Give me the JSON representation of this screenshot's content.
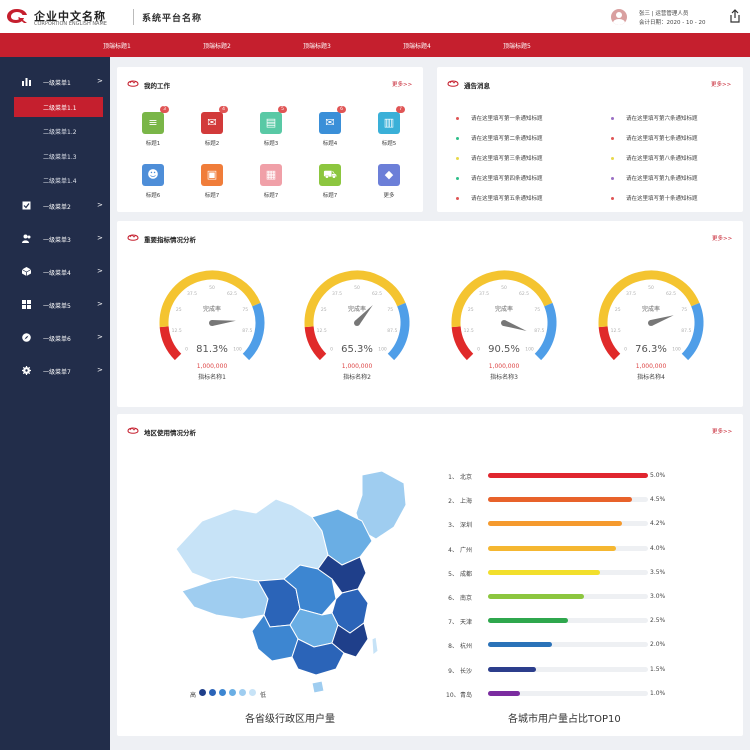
{
  "header": {
    "logo_cn": "企业中文名称",
    "logo_en": "CORPORTION ENGLISH NAME",
    "system_name": "系统平台名称",
    "user_line1": "张三 | 运营管理人员",
    "user_line2": "会计日期：2020 - 10 - 20",
    "logo_icon": "company-logo-icon",
    "export_icon": "export-icon"
  },
  "top_nav": [
    "顶端标题1",
    "顶端标题2",
    "顶端标题3",
    "顶端标题4",
    "顶端标题5"
  ],
  "sidebar": {
    "first_menu": {
      "label": "一级菜单1",
      "icon": "chart-bars-icon",
      "arrow": ">"
    },
    "sub_items": [
      "二级菜单1.1",
      "二级菜单1.2",
      "二级菜单1.3",
      "二级菜单1.4"
    ],
    "menus": [
      {
        "label": "一级菜单2",
        "icon": "checkbox-icon",
        "arrow": ">"
      },
      {
        "label": "一级菜单3",
        "icon": "users-icon",
        "arrow": ">"
      },
      {
        "label": "一级菜单4",
        "icon": "cube-icon",
        "arrow": ">"
      },
      {
        "label": "一级菜单5",
        "icon": "grid-icon",
        "arrow": ">"
      },
      {
        "label": "一级菜单6",
        "icon": "compass-icon",
        "arrow": ">"
      },
      {
        "label": "一级菜单7",
        "icon": "gear-icon",
        "arrow": ">"
      }
    ]
  },
  "my_work": {
    "title": "我的工作",
    "more": "更多>>",
    "items": [
      {
        "label": "标题1",
        "badge": "3",
        "color": "#7ab648",
        "glyph": "≡",
        "icon": "message-icon"
      },
      {
        "label": "标题2",
        "badge": "4",
        "color": "#d23a3a",
        "glyph": "✉",
        "icon": "mail-icon"
      },
      {
        "label": "标题3",
        "badge": "5",
        "color": "#59c9a5",
        "glyph": "▤",
        "icon": "calendar-icon"
      },
      {
        "label": "标题4",
        "badge": "6",
        "color": "#3a8fd8",
        "glyph": "✉",
        "icon": "envelope-icon"
      },
      {
        "label": "标题5",
        "badge": "7",
        "color": "#3ab0d8",
        "glyph": "▥",
        "icon": "clipboard-icon"
      },
      {
        "label": "标题6",
        "badge": "",
        "color": "#4e8ed8",
        "glyph": "☻",
        "icon": "person-icon"
      },
      {
        "label": "标题7",
        "badge": "",
        "color": "#f07d3a",
        "glyph": "▣",
        "icon": "briefcase-icon"
      },
      {
        "label": "标题7",
        "badge": "",
        "color": "#f0a0a8",
        "glyph": "▦",
        "icon": "document-icon"
      },
      {
        "label": "标题7",
        "badge": "",
        "color": "#8cc63f",
        "glyph": "⛟",
        "icon": "truck-icon"
      },
      {
        "label": "更多",
        "badge": "",
        "color": "#6c7fd8",
        "glyph": "◆",
        "icon": "more-grid-icon"
      }
    ]
  },
  "notices": {
    "title": "通告消息",
    "more": "更多>>",
    "items": [
      {
        "text": "请在这里填写第一条通知标题",
        "color": "#e05555"
      },
      {
        "text": "请在这里填写第二条通知标题",
        "color": "#2fbf8a"
      },
      {
        "text": "请在这里填写第三条通知标题",
        "color": "#e8d94a"
      },
      {
        "text": "请在这里填写第四条通知标题",
        "color": "#2fbf8a"
      },
      {
        "text": "请在这里填写第五条通知标题",
        "color": "#e05555"
      },
      {
        "text": "请在这里填写第六条通知标题",
        "color": "#9a6fc4"
      },
      {
        "text": "请在这里填写第七条通知标题",
        "color": "#e05555"
      },
      {
        "text": "请在这里填写第八条通知标题",
        "color": "#e8d94a"
      },
      {
        "text": "请在这里填写第九条通知标题",
        "color": "#9a6fc4"
      },
      {
        "text": "请在这里填写第十条通知标题",
        "color": "#e05555"
      }
    ]
  },
  "indicators": {
    "title": "重要指标情况分析",
    "more": "更多>>",
    "gauge_label": "完成率",
    "gauge_ticks": [
      "0",
      "12.5",
      "25",
      "37.5",
      "50",
      "62.5",
      "75",
      "87.5",
      "100"
    ],
    "gauges": [
      {
        "value": 81.3,
        "display": "81.3%",
        "sub": "1,000,000",
        "name": "指标名称1"
      },
      {
        "value": 65.3,
        "display": "65.3%",
        "sub": "1,000,000",
        "name": "指标名称2"
      },
      {
        "value": 90.5,
        "display": "90.5%",
        "sub": "1,000,000",
        "name": "指标名称3"
      },
      {
        "value": 76.3,
        "display": "76.3%",
        "sub": "1,000,000",
        "name": "指标名称4"
      }
    ],
    "colors": {
      "low": "#e02a2a",
      "mid": "#f4c430",
      "high": "#4f9ee8"
    }
  },
  "region": {
    "title": "地区使用情况分析",
    "more": "更多>>",
    "legend_high": "高",
    "legend_low": "低",
    "map_caption": "各省级行政区用户量",
    "rank_caption": "各城市用户量占比TOP10",
    "map_colors": [
      "#1f3f8a",
      "#2b64b8",
      "#3d86d1",
      "#6aaee4",
      "#9fcdf0",
      "#c7e3f7"
    ]
  },
  "chart_data": {
    "type": "bar",
    "orientation": "horizontal",
    "title": "各城市用户量占比TOP10",
    "categories": [
      "北京",
      "上海",
      "深圳",
      "广州",
      "成都",
      "南京",
      "天津",
      "杭州",
      "长沙",
      "青岛"
    ],
    "ranks": [
      "1、",
      "2、",
      "3、",
      "4、",
      "5、",
      "6、",
      "7、",
      "8、",
      "9、",
      "10、"
    ],
    "values": [
      5.0,
      4.5,
      4.2,
      4.0,
      3.5,
      3.0,
      2.5,
      2.0,
      1.5,
      1.0
    ],
    "labels": [
      "5.0%",
      "4.5%",
      "4.2%",
      "4.0%",
      "3.5%",
      "3.0%",
      "2.5%",
      "2.0%",
      "1.5%",
      "1.0%"
    ],
    "colors": [
      "#e0262f",
      "#e8622a",
      "#f59a2e",
      "#f5b731",
      "#f2df2c",
      "#8cc63f",
      "#2fa74d",
      "#2a72b8",
      "#2c3e8c",
      "#7b2ca0"
    ],
    "xlim": [
      0,
      5
    ],
    "grid": false,
    "legend": "none"
  }
}
